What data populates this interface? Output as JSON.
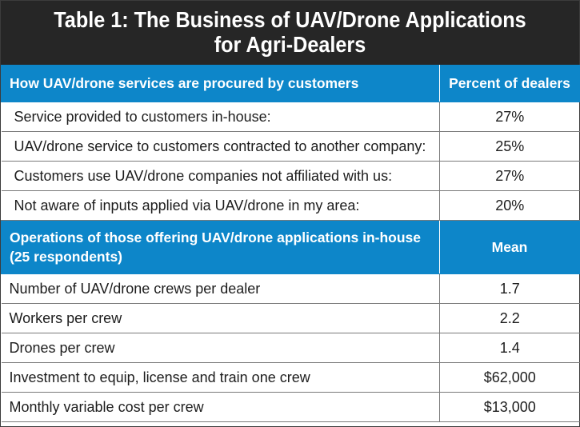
{
  "title": {
    "line1": "Table 1: The Business of UAV/Drone Applications",
    "line2": "for Agri-Dealers"
  },
  "section1": {
    "header_label": "How UAV/drone services are procured by customers",
    "header_value": "Percent of dealers",
    "rows": [
      {
        "label": "Service provided to customers in-house:",
        "value": "27%"
      },
      {
        "label": "UAV/drone service to customers contracted to another company:",
        "value": "25%"
      },
      {
        "label": "Customers use UAV/drone companies not affiliated with us:",
        "value": "27%"
      },
      {
        "label": "Not aware of inputs applied via UAV/drone in my area:",
        "value": "20%"
      }
    ]
  },
  "section2": {
    "header_label_line1": "Operations of those offering UAV/drone applications in-house",
    "header_label_line2": "(25 respondents)",
    "header_value": "Mean",
    "rows": [
      {
        "label": "Number of UAV/drone crews per dealer",
        "value": "1.7"
      },
      {
        "label": "Workers per crew",
        "value": "2.2"
      },
      {
        "label": "Drones per crew",
        "value": "1.4"
      },
      {
        "label": "Investment to equip, license and train one crew",
        "value": "$62,000"
      },
      {
        "label": "Monthly variable cost per crew",
        "value": "$13,000"
      }
    ]
  },
  "colors": {
    "title_bg": "#262626",
    "header_bg": "#0d86c9",
    "text": "#1d1d1d"
  }
}
